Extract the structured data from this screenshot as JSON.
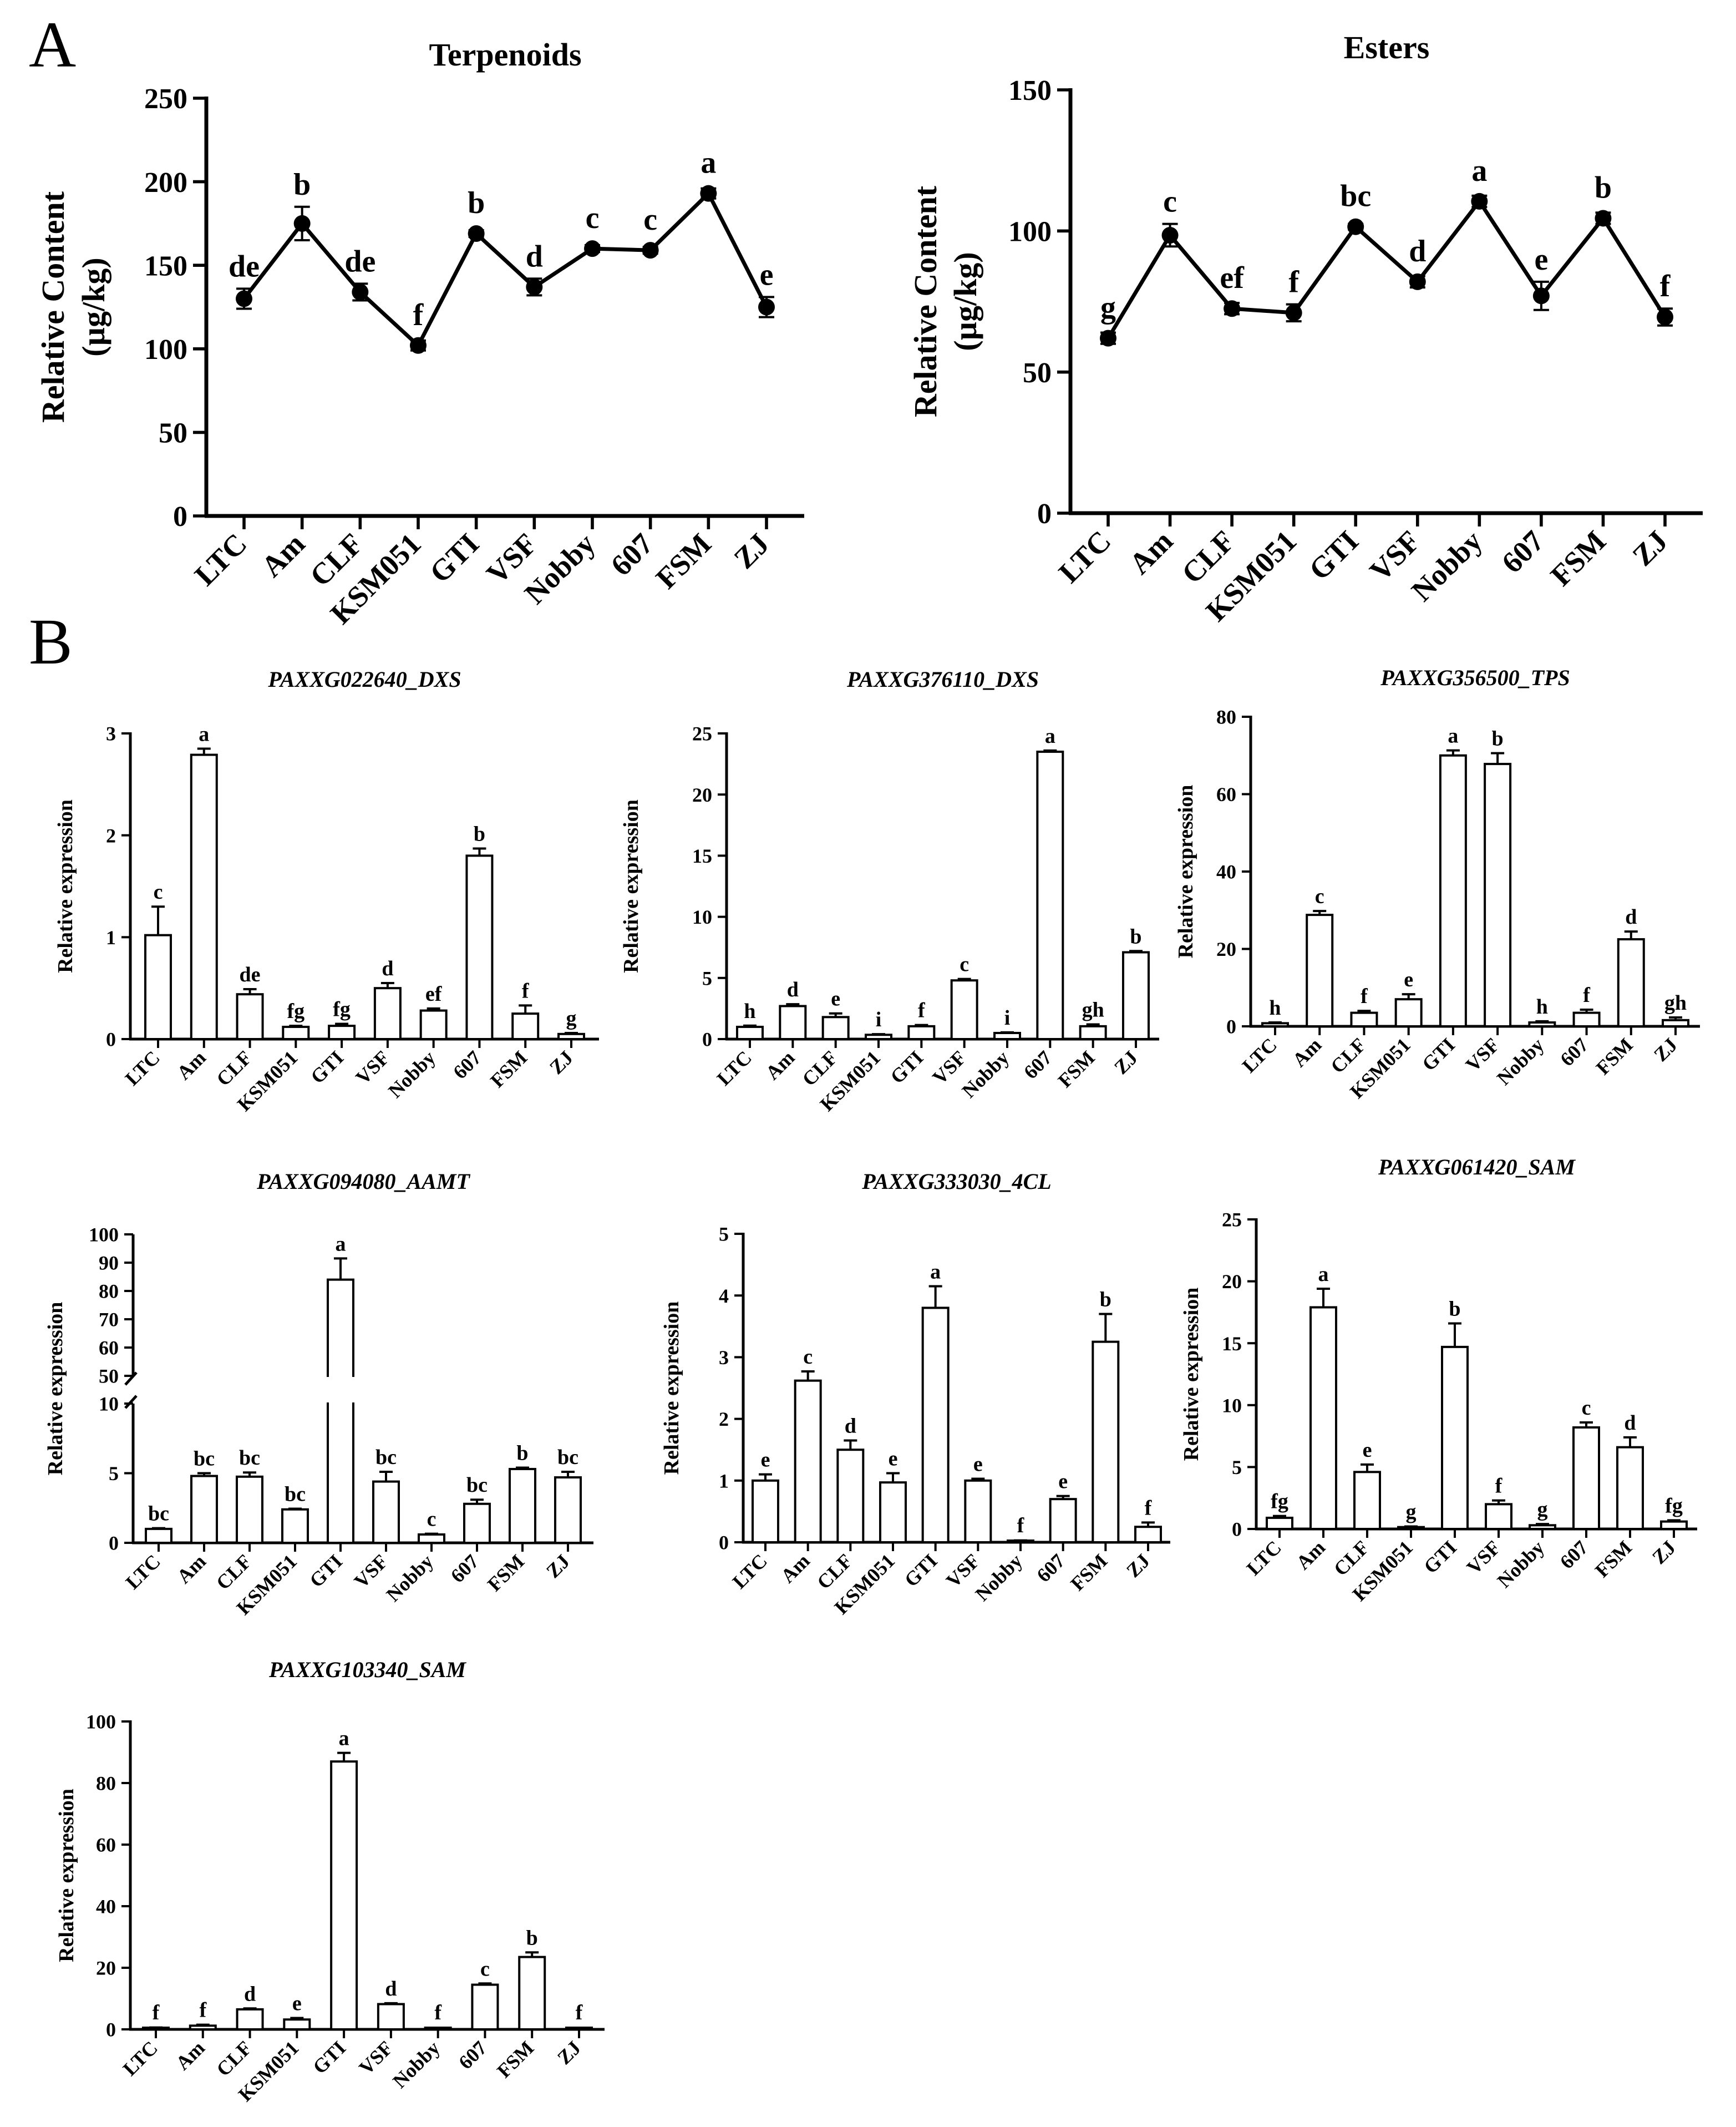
{
  "panels": {
    "a": "A",
    "b": "B"
  },
  "chart_data": [
    {
      "id": "terpenoids",
      "type": "line",
      "title": "Terpenoids",
      "title_italic": false,
      "ylabel": [
        "Relative Content",
        "(µg/kg)"
      ],
      "ylim": [
        0,
        250
      ],
      "yticks": [
        0,
        50,
        100,
        150,
        200,
        250
      ],
      "categories": [
        "LTC",
        "Am",
        "CLF",
        "KSM051",
        "GTI",
        "VSF",
        "Nobby",
        "607",
        "FSM",
        "ZJ"
      ],
      "values": [
        130,
        175,
        134,
        102,
        169,
        137,
        160,
        159,
        193,
        125
      ],
      "errors": [
        6,
        10,
        5,
        3,
        2,
        5,
        2,
        2,
        3,
        6
      ],
      "letters": [
        "de",
        "b",
        "de",
        "f",
        "b",
        "d",
        "c",
        "c",
        "a",
        "e"
      ]
    },
    {
      "id": "esters",
      "type": "line",
      "title": "Esters",
      "title_italic": false,
      "ylabel": [
        "Relative Content",
        "(µg/kg)"
      ],
      "ylim": [
        0,
        150
      ],
      "yticks": [
        0,
        50,
        100,
        150
      ],
      "categories": [
        "LTC",
        "Am",
        "CLF",
        "KSM051",
        "GTI",
        "VSF",
        "Nobby",
        "607",
        "FSM",
        "ZJ"
      ],
      "values": [
        62,
        98.5,
        72.5,
        71,
        101.5,
        82,
        110.5,
        77,
        104.5,
        69.5
      ],
      "errors": [
        2,
        4,
        2,
        3,
        1,
        2,
        2,
        5,
        2,
        3
      ],
      "letters": [
        "g",
        "c",
        "ef",
        "f",
        "bc",
        "d",
        "a",
        "e",
        "b",
        "f"
      ]
    },
    {
      "id": "dxs1",
      "type": "bar",
      "title": "PAXXG022640_DXS",
      "title_italic": true,
      "ylabel": "Relative expression",
      "ylim": [
        0,
        3
      ],
      "yticks": [
        0,
        1,
        2,
        3
      ],
      "categories": [
        "LTC",
        "Am",
        "CLF",
        "KSM051",
        "GTI",
        "VSF",
        "Nobby",
        "607",
        "FSM",
        "ZJ"
      ],
      "values": [
        1.02,
        2.79,
        0.44,
        0.12,
        0.13,
        0.5,
        0.28,
        1.8,
        0.25,
        0.05
      ],
      "errors": [
        0.28,
        0.06,
        0.05,
        0.01,
        0.02,
        0.05,
        0.02,
        0.07,
        0.08,
        0.01
      ],
      "letters": [
        "c",
        "a",
        "de",
        "fg",
        "fg",
        "d",
        "ef",
        "b",
        "f",
        "g"
      ]
    },
    {
      "id": "dxs2",
      "type": "bar",
      "title": "PAXXG376110_DXS",
      "title_italic": true,
      "ylabel": "Relative expression",
      "ylim": [
        0,
        25
      ],
      "yticks": [
        0,
        5,
        10,
        15,
        20,
        25
      ],
      "categories": [
        "LTC",
        "Am",
        "CLF",
        "KSM051",
        "GTI",
        "VSF",
        "Nobby",
        "607",
        "FSM",
        "ZJ"
      ],
      "values": [
        1.0,
        2.7,
        1.8,
        0.35,
        1.05,
        4.8,
        0.5,
        23.5,
        1.05,
        7.1
      ],
      "errors": [
        0.1,
        0.15,
        0.3,
        0.05,
        0.1,
        0.12,
        0.05,
        0.1,
        0.15,
        0.1
      ],
      "letters": [
        "h",
        "d",
        "e",
        "i",
        "f",
        "c",
        "i",
        "a",
        "gh",
        "b"
      ]
    },
    {
      "id": "tps",
      "type": "bar",
      "title": "PAXXG356500_TPS",
      "title_italic": true,
      "ylabel": "Relative expression",
      "ylim": [
        0,
        80
      ],
      "yticks": [
        0,
        20,
        40,
        60,
        80
      ],
      "categories": [
        "LTC",
        "Am",
        "CLF",
        "KSM051",
        "GTI",
        "VSF",
        "Nobby",
        "607",
        "FSM",
        "ZJ"
      ],
      "values": [
        0.8,
        28.8,
        3.5,
        7.0,
        70.0,
        67.8,
        1.0,
        3.5,
        22.5,
        1.6
      ],
      "errors": [
        0.2,
        1.0,
        0.5,
        1.3,
        1.3,
        2.8,
        0.3,
        0.8,
        2.0,
        0.7
      ],
      "letters": [
        "h",
        "c",
        "f",
        "e",
        "a",
        "b",
        "h",
        "f",
        "d",
        "gh"
      ]
    },
    {
      "id": "aamt",
      "type": "bar",
      "broken_axis": true,
      "title": "PAXXG094080_AAMT",
      "title_italic": true,
      "ylabel": "Relative expression",
      "ylim_lower": [
        0,
        10
      ],
      "ylim_upper": [
        50,
        100
      ],
      "yticks_lower": [
        0,
        5,
        10
      ],
      "yticks_upper": [
        50,
        60,
        70,
        80,
        90,
        100
      ],
      "categories": [
        "LTC",
        "Am",
        "CLF",
        "KSM051",
        "GTI",
        "VSF",
        "Nobby",
        "607",
        "FSM",
        "ZJ"
      ],
      "values": [
        1.0,
        4.8,
        4.75,
        2.4,
        84.0,
        4.4,
        0.6,
        2.8,
        5.3,
        4.7
      ],
      "errors": [
        0.05,
        0.2,
        0.3,
        0.05,
        7.5,
        0.7,
        0.05,
        0.3,
        0.1,
        0.4
      ],
      "letters": [
        "bc",
        "bc",
        "bc",
        "bc",
        "a",
        "bc",
        "c",
        "bc",
        "b",
        "bc"
      ]
    },
    {
      "id": "4cl",
      "type": "bar",
      "title": "PAXXG333030_4CL",
      "title_italic": true,
      "ylabel": "Relative expression",
      "ylim": [
        0,
        5
      ],
      "yticks": [
        0,
        1,
        2,
        3,
        4,
        5
      ],
      "categories": [
        "LTC",
        "Am",
        "CLF",
        "KSM051",
        "GTI",
        "VSF",
        "Nobby",
        "607",
        "FSM",
        "ZJ"
      ],
      "values": [
        1.0,
        2.62,
        1.5,
        0.97,
        3.8,
        1.0,
        0.02,
        0.7,
        3.25,
        0.25
      ],
      "errors": [
        0.1,
        0.15,
        0.15,
        0.15,
        0.35,
        0.03,
        0.01,
        0.05,
        0.45,
        0.07
      ],
      "letters": [
        "e",
        "c",
        "d",
        "e",
        "a",
        "e",
        "f",
        "e",
        "b",
        "f"
      ]
    },
    {
      "id": "sam1",
      "type": "bar",
      "title": "PAXXG061420_SAM",
      "title_italic": true,
      "ylabel": "Relative expression",
      "ylim": [
        0,
        25
      ],
      "yticks": [
        0,
        5,
        10,
        15,
        20,
        25
      ],
      "categories": [
        "LTC",
        "Am",
        "CLF",
        "KSM051",
        "GTI",
        "VSF",
        "Nobby",
        "607",
        "FSM",
        "ZJ"
      ],
      "values": [
        0.9,
        17.9,
        4.6,
        0.15,
        14.7,
        2.0,
        0.3,
        8.2,
        6.6,
        0.6
      ],
      "errors": [
        0.15,
        1.5,
        0.6,
        0.05,
        1.9,
        0.3,
        0.1,
        0.4,
        0.8,
        0.1
      ],
      "letters": [
        "fg",
        "a",
        "e",
        "g",
        "b",
        "f",
        "g",
        "c",
        "d",
        "fg"
      ]
    },
    {
      "id": "sam2",
      "type": "bar",
      "title": "PAXXG103340_SAM",
      "title_italic": true,
      "ylabel": "Relative expression",
      "ylim": [
        0,
        100
      ],
      "yticks": [
        0,
        20,
        40,
        60,
        80,
        100
      ],
      "categories": [
        "LTC",
        "Am",
        "CLF",
        "KSM051",
        "GTI",
        "VSF",
        "Nobby",
        "607",
        "FSM",
        "ZJ"
      ],
      "values": [
        0.5,
        1.2,
        6.5,
        3.2,
        87.0,
        8.2,
        0.1,
        14.5,
        23.5,
        0.1
      ],
      "errors": [
        0.1,
        0.3,
        0.3,
        0.5,
        2.8,
        0.3,
        0.05,
        0.4,
        1.5,
        0.05
      ],
      "letters": [
        "f",
        "f",
        "d",
        "e",
        "a",
        "d",
        "f",
        "c",
        "b",
        "f"
      ]
    }
  ]
}
